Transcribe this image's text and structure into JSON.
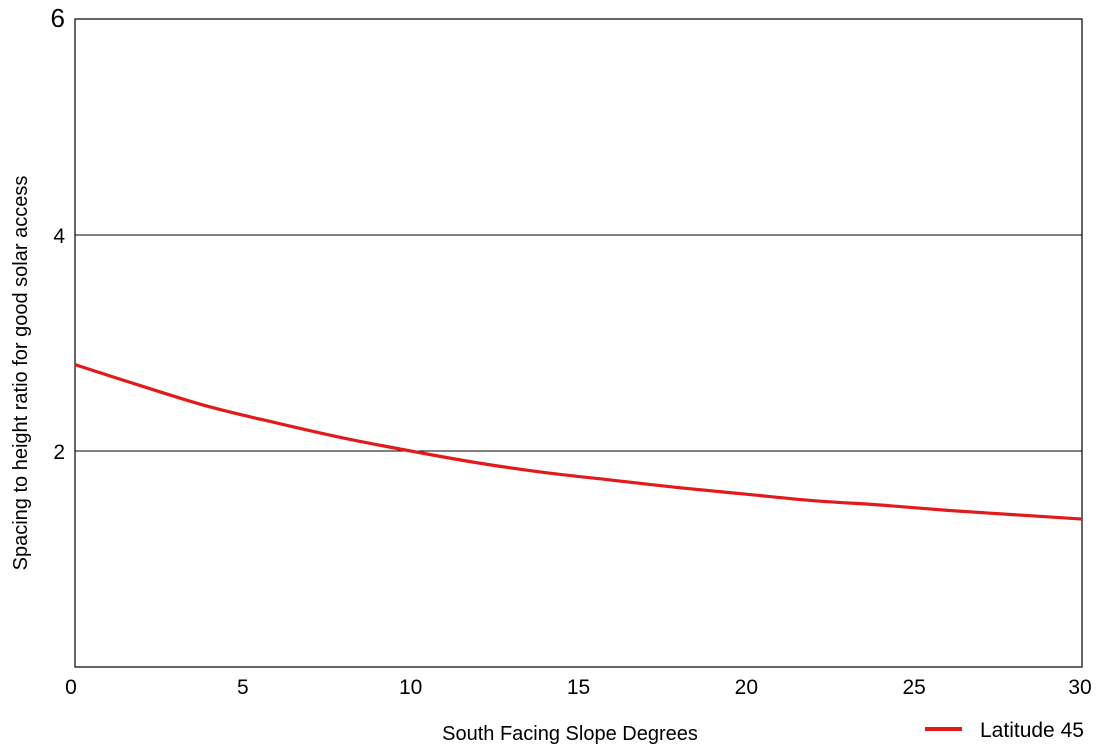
{
  "chart_data": {
    "type": "line",
    "xlabel": "South Facing Slope Degrees",
    "ylabel": "Spacing to height ratio for good solar access",
    "xlim": [
      0,
      30
    ],
    "ylim": [
      0,
      6
    ],
    "xticks": [
      "0",
      "5",
      "10",
      "15",
      "20",
      "25",
      "30"
    ],
    "yticks": [
      "2",
      "4",
      "6"
    ],
    "grid": "horizontal",
    "legend_position": "bottom-right",
    "series": [
      {
        "name": "Latitude 45",
        "color": "#e31a1c",
        "x": [
          0,
          2,
          4,
          6,
          8,
          10,
          12,
          14,
          16,
          18,
          20,
          22,
          24,
          26,
          28,
          30
        ],
        "y": [
          2.8,
          2.6,
          2.41,
          2.26,
          2.12,
          2.0,
          1.89,
          1.8,
          1.73,
          1.66,
          1.6,
          1.54,
          1.5,
          1.45,
          1.41,
          1.37
        ]
      }
    ]
  }
}
